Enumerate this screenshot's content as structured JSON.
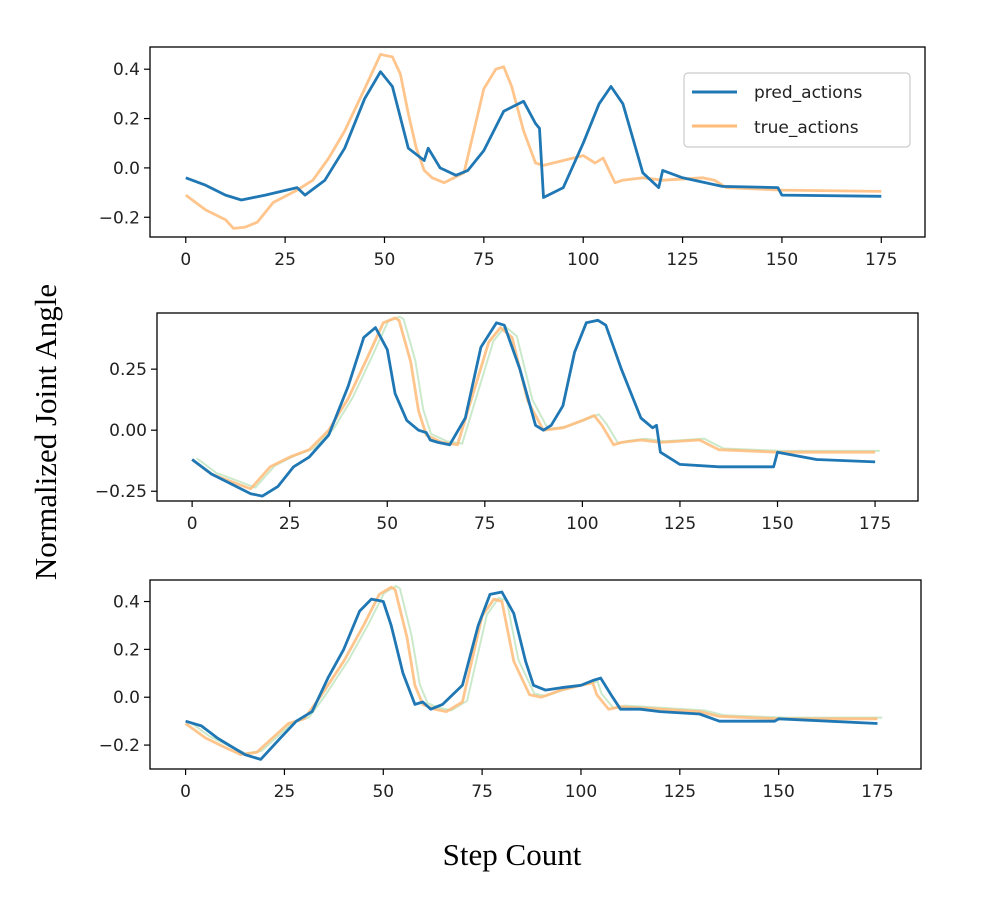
{
  "figure": {
    "ylabel": "Normalized Joint Angle",
    "xlabel": "Step Count"
  },
  "legend": {
    "items": [
      "pred_actions",
      "true_actions"
    ],
    "colors": [
      "#1f77b4",
      "#ffbb78"
    ]
  },
  "colors": {
    "pred": "#1f77b4",
    "true": "#ffbb78",
    "faint_green": "#b5dfb5"
  },
  "chart_data": [
    {
      "type": "line",
      "xlim": [
        -9,
        186
      ],
      "ylim": [
        -0.28,
        0.49
      ],
      "xticks": [
        0,
        25,
        50,
        75,
        100,
        125,
        150,
        175
      ],
      "xtick_labels": [
        "0",
        "25",
        "50",
        "75",
        "100",
        "125",
        "150",
        "175"
      ],
      "yticks": [
        -0.2,
        0.0,
        0.2,
        0.4
      ],
      "ytick_labels": [
        "−0.2",
        "0.0",
        "0.2",
        "0.4"
      ],
      "legend": "top-right",
      "series": [
        {
          "name": "pred_actions",
          "x": [
            0,
            5,
            10,
            14,
            20,
            28,
            30,
            35,
            40,
            45,
            49,
            52,
            56,
            60,
            61,
            64,
            68,
            71,
            75,
            80,
            85,
            88,
            89,
            90,
            95,
            100,
            104,
            107,
            110,
            115,
            119,
            120,
            125,
            135,
            149,
            150,
            175
          ],
          "y": [
            -0.04,
            -0.07,
            -0.11,
            -0.13,
            -0.11,
            -0.08,
            -0.11,
            -0.05,
            0.08,
            0.28,
            0.39,
            0.33,
            0.08,
            0.03,
            0.08,
            0.0,
            -0.03,
            -0.01,
            0.07,
            0.23,
            0.27,
            0.18,
            0.16,
            -0.12,
            -0.08,
            0.1,
            0.26,
            0.33,
            0.26,
            -0.02,
            -0.08,
            -0.01,
            -0.04,
            -0.075,
            -0.08,
            -0.11,
            -0.115
          ]
        },
        {
          "name": "true_actions",
          "x": [
            0,
            5,
            10,
            12,
            15,
            18,
            22,
            28,
            32,
            36,
            40,
            45,
            49,
            52,
            54,
            56,
            58,
            60,
            62,
            65,
            70,
            75,
            78,
            80,
            82,
            85,
            88,
            90,
            95,
            100,
            103,
            105,
            108,
            110,
            115,
            120,
            130,
            133,
            136,
            150,
            175
          ],
          "y": [
            -0.11,
            -0.17,
            -0.21,
            -0.245,
            -0.24,
            -0.22,
            -0.14,
            -0.09,
            -0.05,
            0.04,
            0.15,
            0.32,
            0.46,
            0.45,
            0.38,
            0.22,
            0.08,
            -0.01,
            -0.04,
            -0.06,
            -0.02,
            0.32,
            0.4,
            0.41,
            0.33,
            0.15,
            0.02,
            0.01,
            0.03,
            0.05,
            0.02,
            0.04,
            -0.06,
            -0.05,
            -0.04,
            -0.05,
            -0.04,
            -0.05,
            -0.08,
            -0.09,
            -0.095
          ]
        }
      ]
    },
    {
      "type": "line",
      "xlim": [
        -9,
        186
      ],
      "ylim": [
        -0.29,
        0.48
      ],
      "xticks": [
        0,
        25,
        50,
        75,
        100,
        125,
        150,
        175
      ],
      "xtick_labels": [
        "0",
        "25",
        "50",
        "75",
        "100",
        "125",
        "150",
        "175"
      ],
      "yticks": [
        -0.25,
        0.0,
        0.25
      ],
      "ytick_labels": [
        "−0.25",
        "0.00",
        "0.25"
      ],
      "legend": "none",
      "series": [
        {
          "name": "pred_actions",
          "x": [
            0,
            5,
            10,
            15,
            18,
            22,
            26,
            30,
            35,
            40,
            44,
            47,
            50,
            52,
            55,
            58,
            60,
            61,
            63,
            66,
            70,
            74,
            78,
            80,
            84,
            88,
            90,
            92,
            95,
            98,
            101,
            104,
            106,
            110,
            115,
            118,
            119,
            120,
            125,
            135,
            149,
            150,
            160,
            175
          ],
          "y": [
            -0.12,
            -0.18,
            -0.22,
            -0.26,
            -0.27,
            -0.23,
            -0.15,
            -0.11,
            -0.02,
            0.18,
            0.38,
            0.42,
            0.33,
            0.15,
            0.04,
            0.0,
            -0.01,
            -0.04,
            -0.05,
            -0.06,
            0.05,
            0.34,
            0.44,
            0.43,
            0.25,
            0.02,
            0.0,
            0.02,
            0.1,
            0.32,
            0.44,
            0.45,
            0.43,
            0.25,
            0.05,
            0.01,
            0.02,
            -0.09,
            -0.14,
            -0.15,
            -0.15,
            -0.09,
            -0.12,
            -0.13
          ]
        },
        {
          "name": "true_actions",
          "x": [
            0,
            5,
            10,
            15,
            20,
            25,
            30,
            35,
            40,
            45,
            49,
            52,
            53,
            56,
            58,
            60,
            64,
            68,
            72,
            76,
            79,
            82,
            86,
            90,
            95,
            100,
            103,
            105,
            108,
            110,
            115,
            120,
            130,
            135,
            150,
            175
          ],
          "y": [
            -0.12,
            -0.18,
            -0.21,
            -0.24,
            -0.15,
            -0.11,
            -0.08,
            0.0,
            0.13,
            0.3,
            0.44,
            0.46,
            0.45,
            0.28,
            0.08,
            -0.02,
            -0.05,
            -0.06,
            0.15,
            0.36,
            0.42,
            0.38,
            0.12,
            0.0,
            0.01,
            0.04,
            0.06,
            0.02,
            -0.06,
            -0.05,
            -0.04,
            -0.05,
            -0.04,
            -0.08,
            -0.09,
            -0.09
          ]
        }
      ]
    },
    {
      "type": "line",
      "xlim": [
        -9,
        186
      ],
      "ylim": [
        -0.3,
        0.49
      ],
      "xticks": [
        0,
        25,
        50,
        75,
        100,
        125,
        150,
        175
      ],
      "xtick_labels": [
        "0",
        "25",
        "50",
        "75",
        "100",
        "125",
        "150",
        "175"
      ],
      "yticks": [
        -0.2,
        0.0,
        0.2,
        0.4
      ],
      "ytick_labels": [
        "−0.2",
        "0.0",
        "0.2",
        "0.4"
      ],
      "legend": "none",
      "series": [
        {
          "name": "pred_actions",
          "x": [
            0,
            4,
            8,
            12,
            15,
            19,
            24,
            28,
            32,
            36,
            40,
            44,
            47,
            50,
            52,
            55,
            58,
            60,
            62,
            65,
            70,
            74,
            77,
            80,
            83,
            86,
            88,
            91,
            95,
            100,
            103,
            105,
            108,
            110,
            115,
            120,
            130,
            135,
            149,
            150,
            175
          ],
          "y": [
            -0.1,
            -0.12,
            -0.17,
            -0.21,
            -0.24,
            -0.26,
            -0.17,
            -0.1,
            -0.06,
            0.08,
            0.2,
            0.36,
            0.41,
            0.4,
            0.3,
            0.1,
            -0.03,
            -0.02,
            -0.05,
            -0.03,
            0.05,
            0.3,
            0.43,
            0.44,
            0.35,
            0.15,
            0.05,
            0.03,
            0.04,
            0.05,
            0.07,
            0.08,
            0.0,
            -0.05,
            -0.05,
            -0.06,
            -0.07,
            -0.1,
            -0.1,
            -0.09,
            -0.11
          ]
        },
        {
          "name": "true_actions",
          "x": [
            0,
            5,
            10,
            14,
            18,
            22,
            26,
            30,
            34,
            40,
            45,
            49,
            52,
            53,
            56,
            58,
            60,
            63,
            66,
            70,
            75,
            78,
            80,
            83,
            87,
            90,
            95,
            100,
            103,
            104,
            107,
            110,
            120,
            130,
            135,
            150,
            175
          ],
          "y": [
            -0.11,
            -0.17,
            -0.21,
            -0.24,
            -0.23,
            -0.17,
            -0.11,
            -0.09,
            0.0,
            0.15,
            0.3,
            0.43,
            0.46,
            0.45,
            0.25,
            0.05,
            -0.03,
            -0.05,
            -0.06,
            -0.02,
            0.34,
            0.41,
            0.4,
            0.15,
            0.01,
            0.0,
            0.03,
            0.05,
            0.06,
            0.01,
            -0.05,
            -0.04,
            -0.05,
            -0.06,
            -0.08,
            -0.09,
            -0.09
          ]
        }
      ]
    }
  ]
}
